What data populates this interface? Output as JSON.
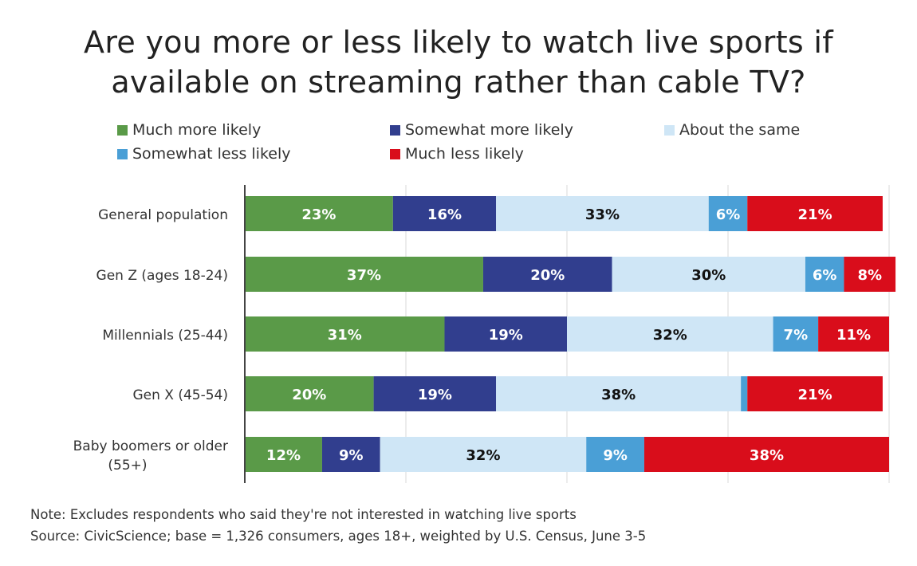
{
  "chart_data": {
    "type": "bar",
    "orientation": "horizontal",
    "stacked": true,
    "title": "Are you more or less likely to watch live sports if available on streaming rather than cable TV?",
    "title_lines": [
      "Are you more or less likely to watch live sports if",
      "available on streaming rather than cable TV?"
    ],
    "categories": [
      "General population",
      "Gen Z (ages 18-24)",
      "Millennials (25-44)",
      "Gen X (45-54)",
      "Baby boomers or older (55+)"
    ],
    "category_lines": [
      [
        "General population"
      ],
      [
        "Gen Z (ages 18-24)"
      ],
      [
        "Millennials (25-44)"
      ],
      [
        "Gen X (45-54)"
      ],
      [
        "Baby boomers or older",
        "(55+)"
      ]
    ],
    "series": [
      {
        "name": "Much more likely",
        "color": "#5a9a48",
        "label_color": "#ffffff",
        "values": [
          23,
          37,
          31,
          20,
          12
        ]
      },
      {
        "name": "Somewhat more likely",
        "color": "#313e8e",
        "label_color": "#ffffff",
        "values": [
          16,
          20,
          19,
          19,
          9
        ]
      },
      {
        "name": "About the same",
        "color": "#cfe6f6",
        "label_color": "#111111",
        "values": [
          33,
          30,
          32,
          38,
          32
        ]
      },
      {
        "name": "Somewhat less likely",
        "color": "#4a9fd6",
        "label_color": "#ffffff",
        "values": [
          6,
          6,
          7,
          1,
          9
        ]
      },
      {
        "name": "Much less likely",
        "color": "#d90d1b",
        "label_color": "#ffffff",
        "values": [
          21,
          8,
          11,
          21,
          38
        ]
      }
    ],
    "hidden_labels": [
      [
        3,
        3
      ]
    ],
    "xlim": [
      0,
      100
    ],
    "xgrid_step": 25,
    "grid": true,
    "legend_position": "top",
    "xlabel": "",
    "ylabel": ""
  },
  "notes": {
    "note": "Note: Excludes respondents who said they're not interested  in watching live sports",
    "source": "Source: CivicScience; base = 1,326 consumers, ages 18+, weighted by U.S. Census, June 3-5"
  }
}
